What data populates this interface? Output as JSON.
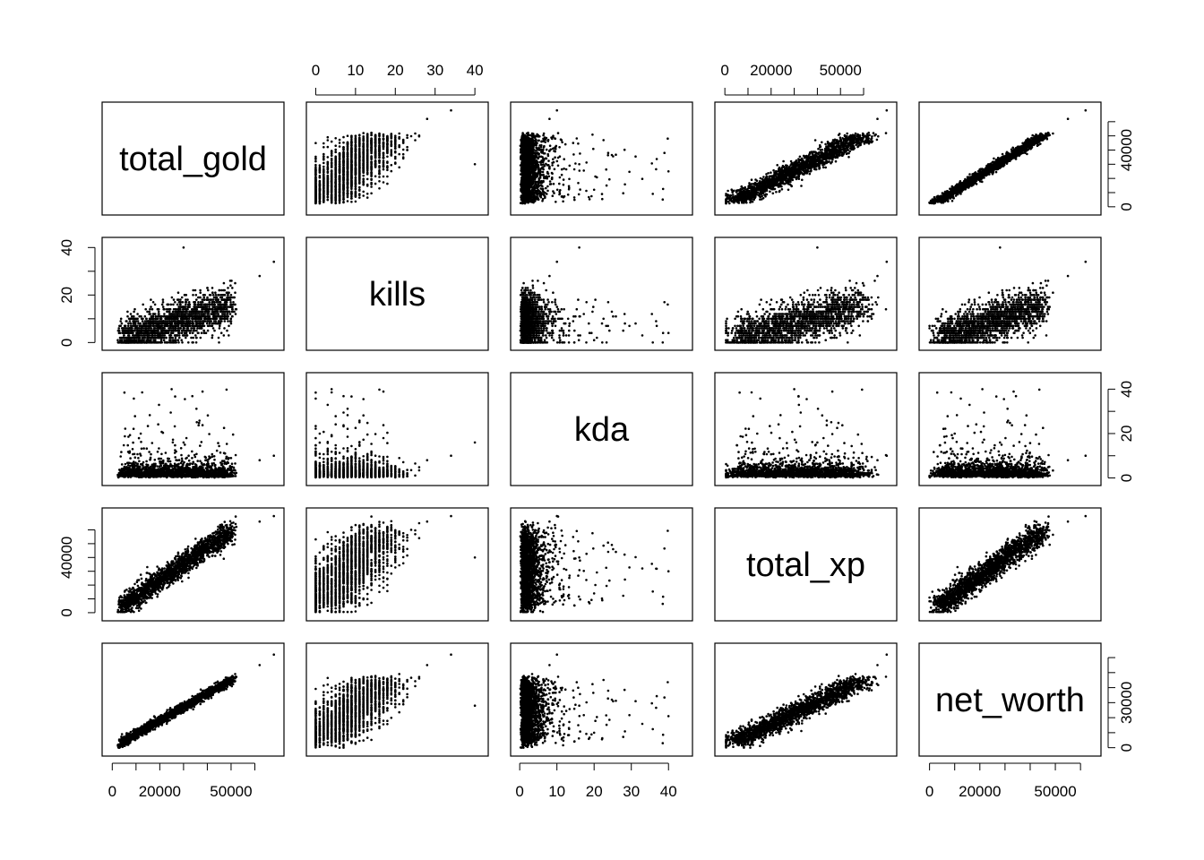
{
  "chart_data": {
    "type": "scatter",
    "title": "",
    "variables": [
      {
        "name": "total_gold",
        "ticks": [
          0,
          20000,
          50000
        ],
        "minor_ticks": [
          10000,
          30000,
          40000,
          60000
        ],
        "range": [
          -2000,
          70000
        ]
      },
      {
        "name": "kills",
        "ticks": [
          0,
          10,
          20,
          30,
          40
        ],
        "minor_ticks": [],
        "range": [
          -1,
          42
        ]
      },
      {
        "name": "kda",
        "ticks": [
          0,
          10,
          20,
          30,
          40
        ],
        "minor_ticks": [],
        "range": [
          -1,
          45
        ]
      },
      {
        "name": "total_xp",
        "ticks": [
          0,
          20000,
          50000
        ],
        "minor_ticks": [
          10000,
          30000,
          40000,
          60000
        ],
        "range": [
          -2000,
          72000
        ]
      },
      {
        "name": "net_worth",
        "ticks": [
          0,
          20000,
          50000
        ],
        "minor_ticks": [
          10000,
          30000,
          40000,
          60000
        ],
        "range": [
          -2000,
          66000
        ]
      }
    ],
    "right_axis_ticks": {
      "total_gold": [
        0,
        40000
      ],
      "kda": [
        0,
        20,
        40
      ],
      "net_worth": [
        0,
        30000
      ]
    },
    "left_axis_ticks": {
      "kills": [
        0,
        20,
        40
      ],
      "total_xp": [
        0,
        40000
      ]
    },
    "top_axis_vars": [
      "kills",
      "total_xp"
    ],
    "bottom_axis_vars": [
      "total_gold",
      "kda",
      "net_worth"
    ],
    "sample_points": [
      {
        "total_gold": 8000,
        "kills": 2,
        "kda": 1.5,
        "total_xp": 9000,
        "net_worth": 7000
      },
      {
        "total_gold": 15000,
        "kills": 5,
        "kda": 3.0,
        "total_xp": 20000,
        "net_worth": 13000
      },
      {
        "total_gold": 22000,
        "kills": 8,
        "kda": 4.2,
        "total_xp": 29000,
        "net_worth": 19000
      },
      {
        "total_gold": 28000,
        "kills": 11,
        "kda": 5.0,
        "total_xp": 36000,
        "net_worth": 24000
      },
      {
        "total_gold": 35000,
        "kills": 14,
        "kda": 3.8,
        "total_xp": 44000,
        "net_worth": 30000
      },
      {
        "total_gold": 42000,
        "kills": 17,
        "kda": 6.5,
        "total_xp": 51000,
        "net_worth": 36000
      },
      {
        "total_gold": 50000,
        "kills": 20,
        "kda": 4.0,
        "total_xp": 58000,
        "net_worth": 43000
      },
      {
        "total_gold": 62000,
        "kills": 28,
        "kda": 8.0,
        "total_xp": 66000,
        "net_worth": 55000
      },
      {
        "total_gold": 68000,
        "kills": 34,
        "kda": 10.0,
        "total_xp": 70000,
        "net_worth": 62000
      },
      {
        "total_gold": 12000,
        "kills": 1,
        "kda": 20.0,
        "total_xp": 14000,
        "net_worth": 10000
      },
      {
        "total_gold": 25000,
        "kills": 4,
        "kda": 40.0,
        "total_xp": 30000,
        "net_worth": 21000
      },
      {
        "total_gold": 30000,
        "kills": 40,
        "kda": 16.0,
        "total_xp": 40000,
        "net_worth": 28000
      }
    ]
  }
}
